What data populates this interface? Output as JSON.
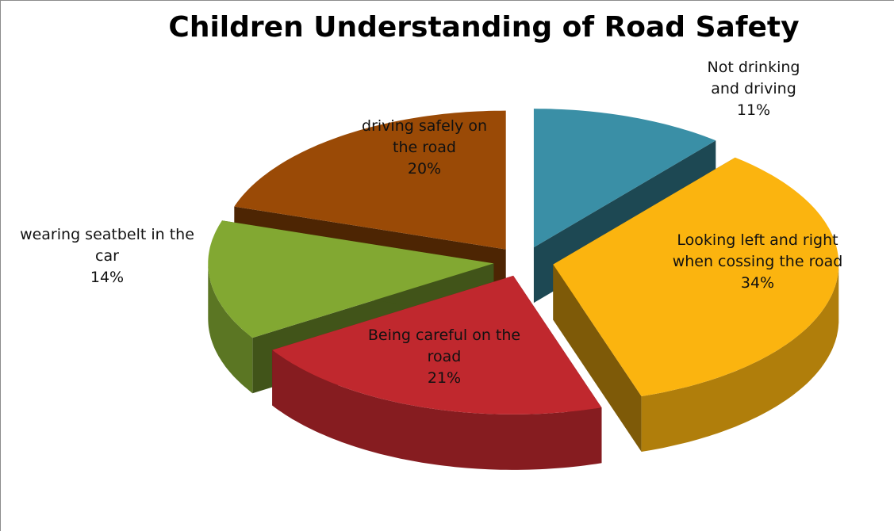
{
  "chart_data": {
    "type": "pie",
    "title": "Children Understanding of Road Safety",
    "categories": [
      "Not drinking and driving",
      "Looking left and right when cossing the road",
      "Being careful on the road",
      "wearing seatbelt in the car",
      "driving safely on the road"
    ],
    "values": [
      11,
      34,
      21,
      14,
      20
    ],
    "value_labels": [
      "11%",
      "34%",
      "21%",
      "14%",
      "20%"
    ],
    "colors": [
      "#3a8fa6",
      "#fbb40f",
      "#c0282e",
      "#82a832",
      "#9a4a06"
    ],
    "three_d": true,
    "exploded": true
  }
}
